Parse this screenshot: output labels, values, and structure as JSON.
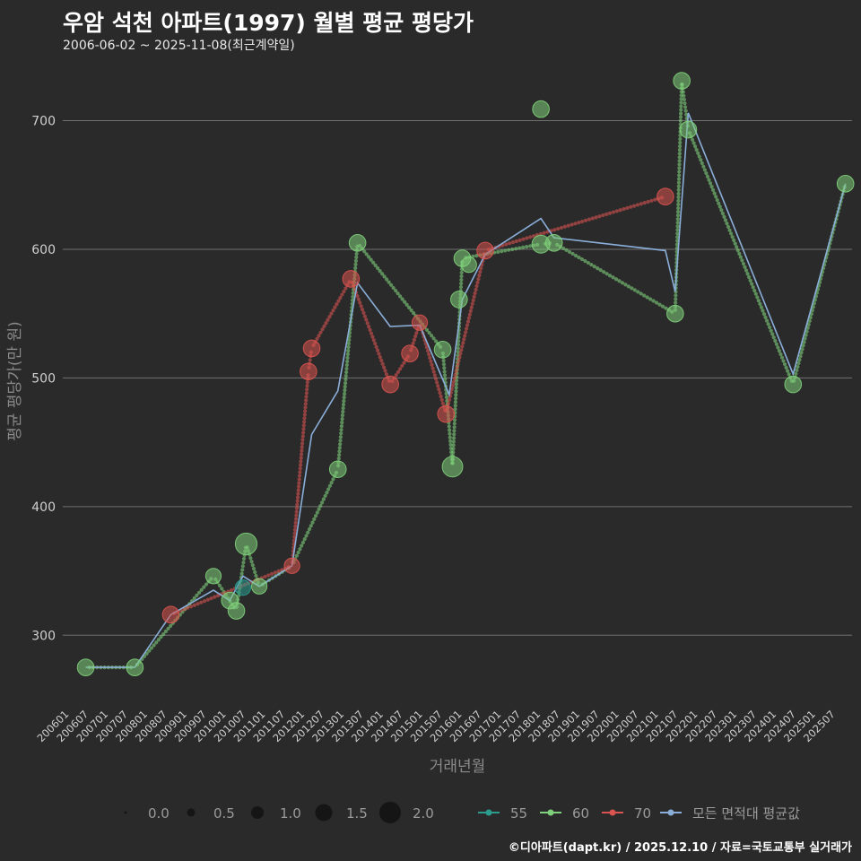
{
  "header": {
    "title": "우암 석천 아파트(1997) 월별 평균 평당가",
    "subtitle": "2006-06-02 ~ 2025-11-08(최근계약일)"
  },
  "footer": {
    "caption": "©디아파트(dapt.kr) / 2025.12.10 / 자료=국토교통부 실거래가"
  },
  "chart_data": {
    "type": "scatter",
    "title": "우암 석천 아파트(1997) 월별 평균 평당가",
    "xlabel": "거래년월",
    "ylabel": "평균 평당가(만 원)",
    "ylim": [
      250,
      745
    ],
    "yticks": [
      300,
      400,
      500,
      600,
      700
    ],
    "grid": true,
    "legend_position": "bottom",
    "x_tick_labels": [
      "200601",
      "200607",
      "200701",
      "200707",
      "200801",
      "200807",
      "200901",
      "200907",
      "201001",
      "201007",
      "201101",
      "201107",
      "201201",
      "201207",
      "201301",
      "201307",
      "201401",
      "201407",
      "201501",
      "201507",
      "201601",
      "201607",
      "201701",
      "201707",
      "201801",
      "201807",
      "201901",
      "201907",
      "202001",
      "202007",
      "202101",
      "202107",
      "202201",
      "202207",
      "202301",
      "202307",
      "202401",
      "202407",
      "202501",
      "202507"
    ],
    "size_legend": {
      "values": [
        0.0,
        0.5,
        1.0,
        1.5,
        2.0
      ],
      "labels": [
        "0.0",
        "0.5",
        "1.0",
        "1.5",
        "2.0"
      ]
    },
    "series": [
      {
        "name": "55",
        "color": "#2a9d8f",
        "points": [
          {
            "x": "2010-06",
            "y": 337,
            "size": 0.8
          }
        ]
      },
      {
        "name": "60",
        "color": "#7fd07a",
        "points": [
          {
            "x": "2006-06",
            "y": 275,
            "size": 0.9
          },
          {
            "x": "2007-09",
            "y": 275,
            "size": 0.9
          },
          {
            "x": "2009-09",
            "y": 346,
            "size": 0.8
          },
          {
            "x": "2010-02",
            "y": 327,
            "size": 0.9
          },
          {
            "x": "2010-04",
            "y": 319,
            "size": 0.9
          },
          {
            "x": "2010-07",
            "y": 371,
            "size": 1.3
          },
          {
            "x": "2010-11",
            "y": 338,
            "size": 0.8
          },
          {
            "x": "2012-11",
            "y": 429,
            "size": 0.9
          },
          {
            "x": "2013-05",
            "y": 605,
            "size": 0.9
          },
          {
            "x": "2015-07",
            "y": 522,
            "size": 0.9
          },
          {
            "x": "2015-10",
            "y": 431,
            "size": 1.2
          },
          {
            "x": "2015-12",
            "y": 561,
            "size": 0.9
          },
          {
            "x": "2016-01",
            "y": 593,
            "size": 0.9
          },
          {
            "x": "2016-03",
            "y": 588,
            "size": 0.8
          },
          {
            "x": "2018-01",
            "y": 709,
            "size": 0.9
          },
          {
            "x": "2018-01",
            "y": 604,
            "size": 1.0
          },
          {
            "x": "2018-05",
            "y": 605,
            "size": 0.9
          },
          {
            "x": "2021-06",
            "y": 550,
            "size": 0.9
          },
          {
            "x": "2021-08",
            "y": 731,
            "size": 0.9
          },
          {
            "x": "2021-10",
            "y": 693,
            "size": 0.9
          },
          {
            "x": "2024-06",
            "y": 495,
            "size": 0.9
          },
          {
            "x": "2025-10",
            "y": 651,
            "size": 0.9
          }
        ]
      },
      {
        "name": "70",
        "color": "#d9534f",
        "points": [
          {
            "x": "2008-08",
            "y": 316,
            "size": 0.9
          },
          {
            "x": "2011-09",
            "y": 354,
            "size": 0.8
          },
          {
            "x": "2012-02",
            "y": 505,
            "size": 0.9
          },
          {
            "x": "2012-03",
            "y": 523,
            "size": 0.9
          },
          {
            "x": "2013-03",
            "y": 577,
            "size": 0.9
          },
          {
            "x": "2014-03",
            "y": 495,
            "size": 0.9
          },
          {
            "x": "2014-09",
            "y": 519,
            "size": 0.9
          },
          {
            "x": "2014-12",
            "y": 543,
            "size": 0.8
          },
          {
            "x": "2015-08",
            "y": 472,
            "size": 0.9
          },
          {
            "x": "2016-08",
            "y": 599,
            "size": 0.9
          },
          {
            "x": "2021-03",
            "y": 641,
            "size": 0.9
          }
        ]
      },
      {
        "name": "모든 면적대 평균값",
        "color": "#8aaed8",
        "points": [
          {
            "x": "2006-06",
            "y": 275
          },
          {
            "x": "2007-09",
            "y": 275
          },
          {
            "x": "2008-08",
            "y": 316
          },
          {
            "x": "2009-09",
            "y": 335
          },
          {
            "x": "2010-02",
            "y": 327
          },
          {
            "x": "2010-06",
            "y": 346
          },
          {
            "x": "2010-11",
            "y": 338
          },
          {
            "x": "2011-09",
            "y": 354
          },
          {
            "x": "2012-03",
            "y": 456
          },
          {
            "x": "2012-11",
            "y": 490
          },
          {
            "x": "2013-05",
            "y": 574
          },
          {
            "x": "2014-03",
            "y": 540
          },
          {
            "x": "2014-12",
            "y": 541
          },
          {
            "x": "2015-09",
            "y": 487
          },
          {
            "x": "2016-01",
            "y": 561
          },
          {
            "x": "2016-08",
            "y": 596
          },
          {
            "x": "2018-01",
            "y": 624
          },
          {
            "x": "2018-05",
            "y": 609
          },
          {
            "x": "2021-03",
            "y": 599
          },
          {
            "x": "2021-06",
            "y": 567
          },
          {
            "x": "2021-10",
            "y": 706
          },
          {
            "x": "2024-06",
            "y": 503
          },
          {
            "x": "2025-10",
            "y": 651
          }
        ]
      }
    ],
    "trend_paths": {
      "55": [],
      "60": [
        [
          "2006-06",
          275
        ],
        [
          "2007-09",
          275
        ],
        [
          "2009-09",
          346
        ],
        [
          "2010-04",
          319
        ],
        [
          "2010-07",
          371
        ],
        [
          "2010-11",
          338
        ],
        [
          "2011-09",
          354
        ],
        [
          "2012-11",
          429
        ],
        [
          "2013-05",
          605
        ],
        [
          "2015-07",
          522
        ],
        [
          "2015-10",
          431
        ],
        [
          "2016-01",
          593
        ],
        [
          "2018-01",
          604
        ],
        [
          "2018-05",
          605
        ],
        [
          "2021-06",
          550
        ],
        [
          "2021-08",
          731
        ],
        [
          "2021-10",
          693
        ],
        [
          "2024-06",
          495
        ],
        [
          "2025-10",
          651
        ]
      ],
      "70": [
        [
          "2008-08",
          316
        ],
        [
          "2011-09",
          354
        ],
        [
          "2012-02",
          505
        ],
        [
          "2012-03",
          523
        ],
        [
          "2013-03",
          577
        ],
        [
          "2014-03",
          495
        ],
        [
          "2014-09",
          519
        ],
        [
          "2014-12",
          543
        ],
        [
          "2015-08",
          472
        ],
        [
          "2016-08",
          599
        ],
        [
          "2021-03",
          641
        ]
      ]
    }
  },
  "colors": {
    "background": "#2a2a2b",
    "grid": "#707070",
    "text": "#e6e6e6"
  }
}
